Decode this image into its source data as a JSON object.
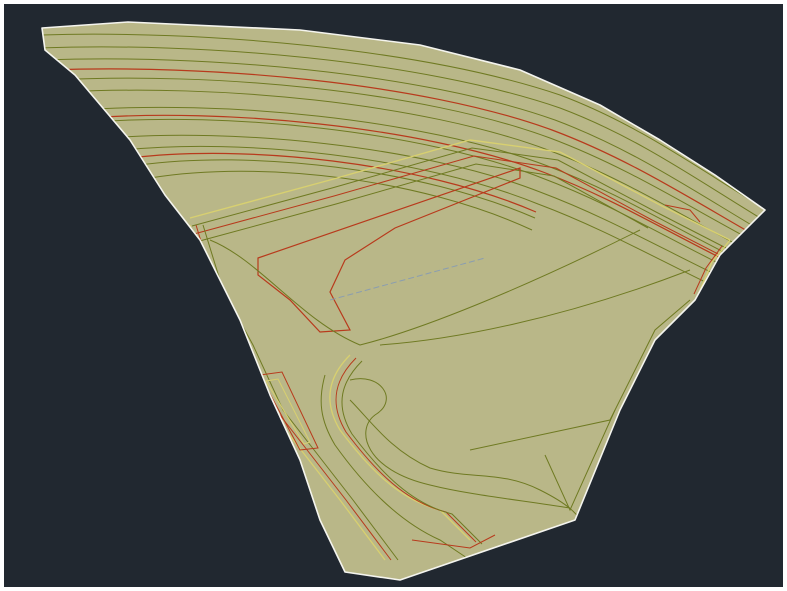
{
  "app": {
    "type": "cad-model-space-viewport"
  },
  "colors": {
    "background": "#212830",
    "surface_fill": "#b9b788",
    "boundary": "#f4f4ee",
    "minor_contour": "#6f7a22",
    "major_contour": "#b83a1c",
    "breakline": "#d8d070",
    "feature_line": "#8a9db0"
  },
  "drawing": {
    "contour_interval_major_every": 5,
    "layers": [
      "boundary",
      "minor-contours",
      "major-contours",
      "breaklines",
      "feature-lines"
    ]
  }
}
